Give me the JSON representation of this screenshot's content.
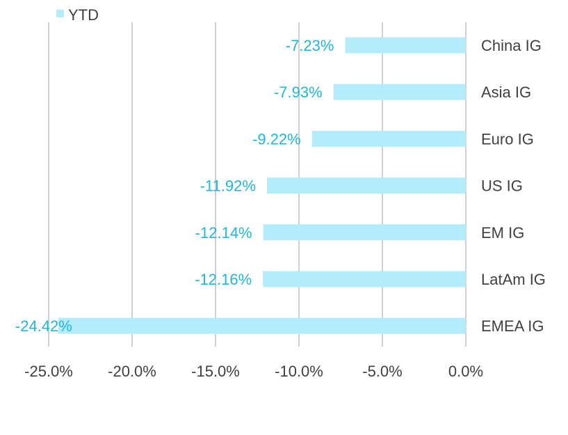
{
  "chart_data": {
    "type": "bar",
    "orientation": "horizontal",
    "categories": [
      "China IG",
      "Asia IG",
      "Euro IG",
      "US IG",
      "EM IG",
      "LatAm IG",
      "EMEA IG"
    ],
    "series": [
      {
        "name": "YTD",
        "values": [
          -7.23,
          -7.93,
          -9.22,
          -11.92,
          -12.14,
          -12.16,
          -24.42
        ],
        "data_labels": [
          "-7.23%",
          "-7.93%",
          "-9.22%",
          "-11.92%",
          "-12.14%",
          "-12.16%",
          "-24.42%"
        ]
      }
    ],
    "xlim": [
      -25,
      0
    ],
    "x_ticks": [
      -25,
      -20,
      -15,
      -10,
      -5,
      0
    ],
    "x_tick_labels": [
      "-25.0%",
      "-20.0%",
      "-15.0%",
      "-10.0%",
      "-5.0%",
      "0.0%"
    ],
    "grid": "vertical",
    "legend": "top-left",
    "category_label_side": "right",
    "colors": {
      "bar": "#B3ECFB",
      "data_label": "#1FB6DD",
      "grid": "#D0D0D0",
      "text": "#404040"
    }
  }
}
